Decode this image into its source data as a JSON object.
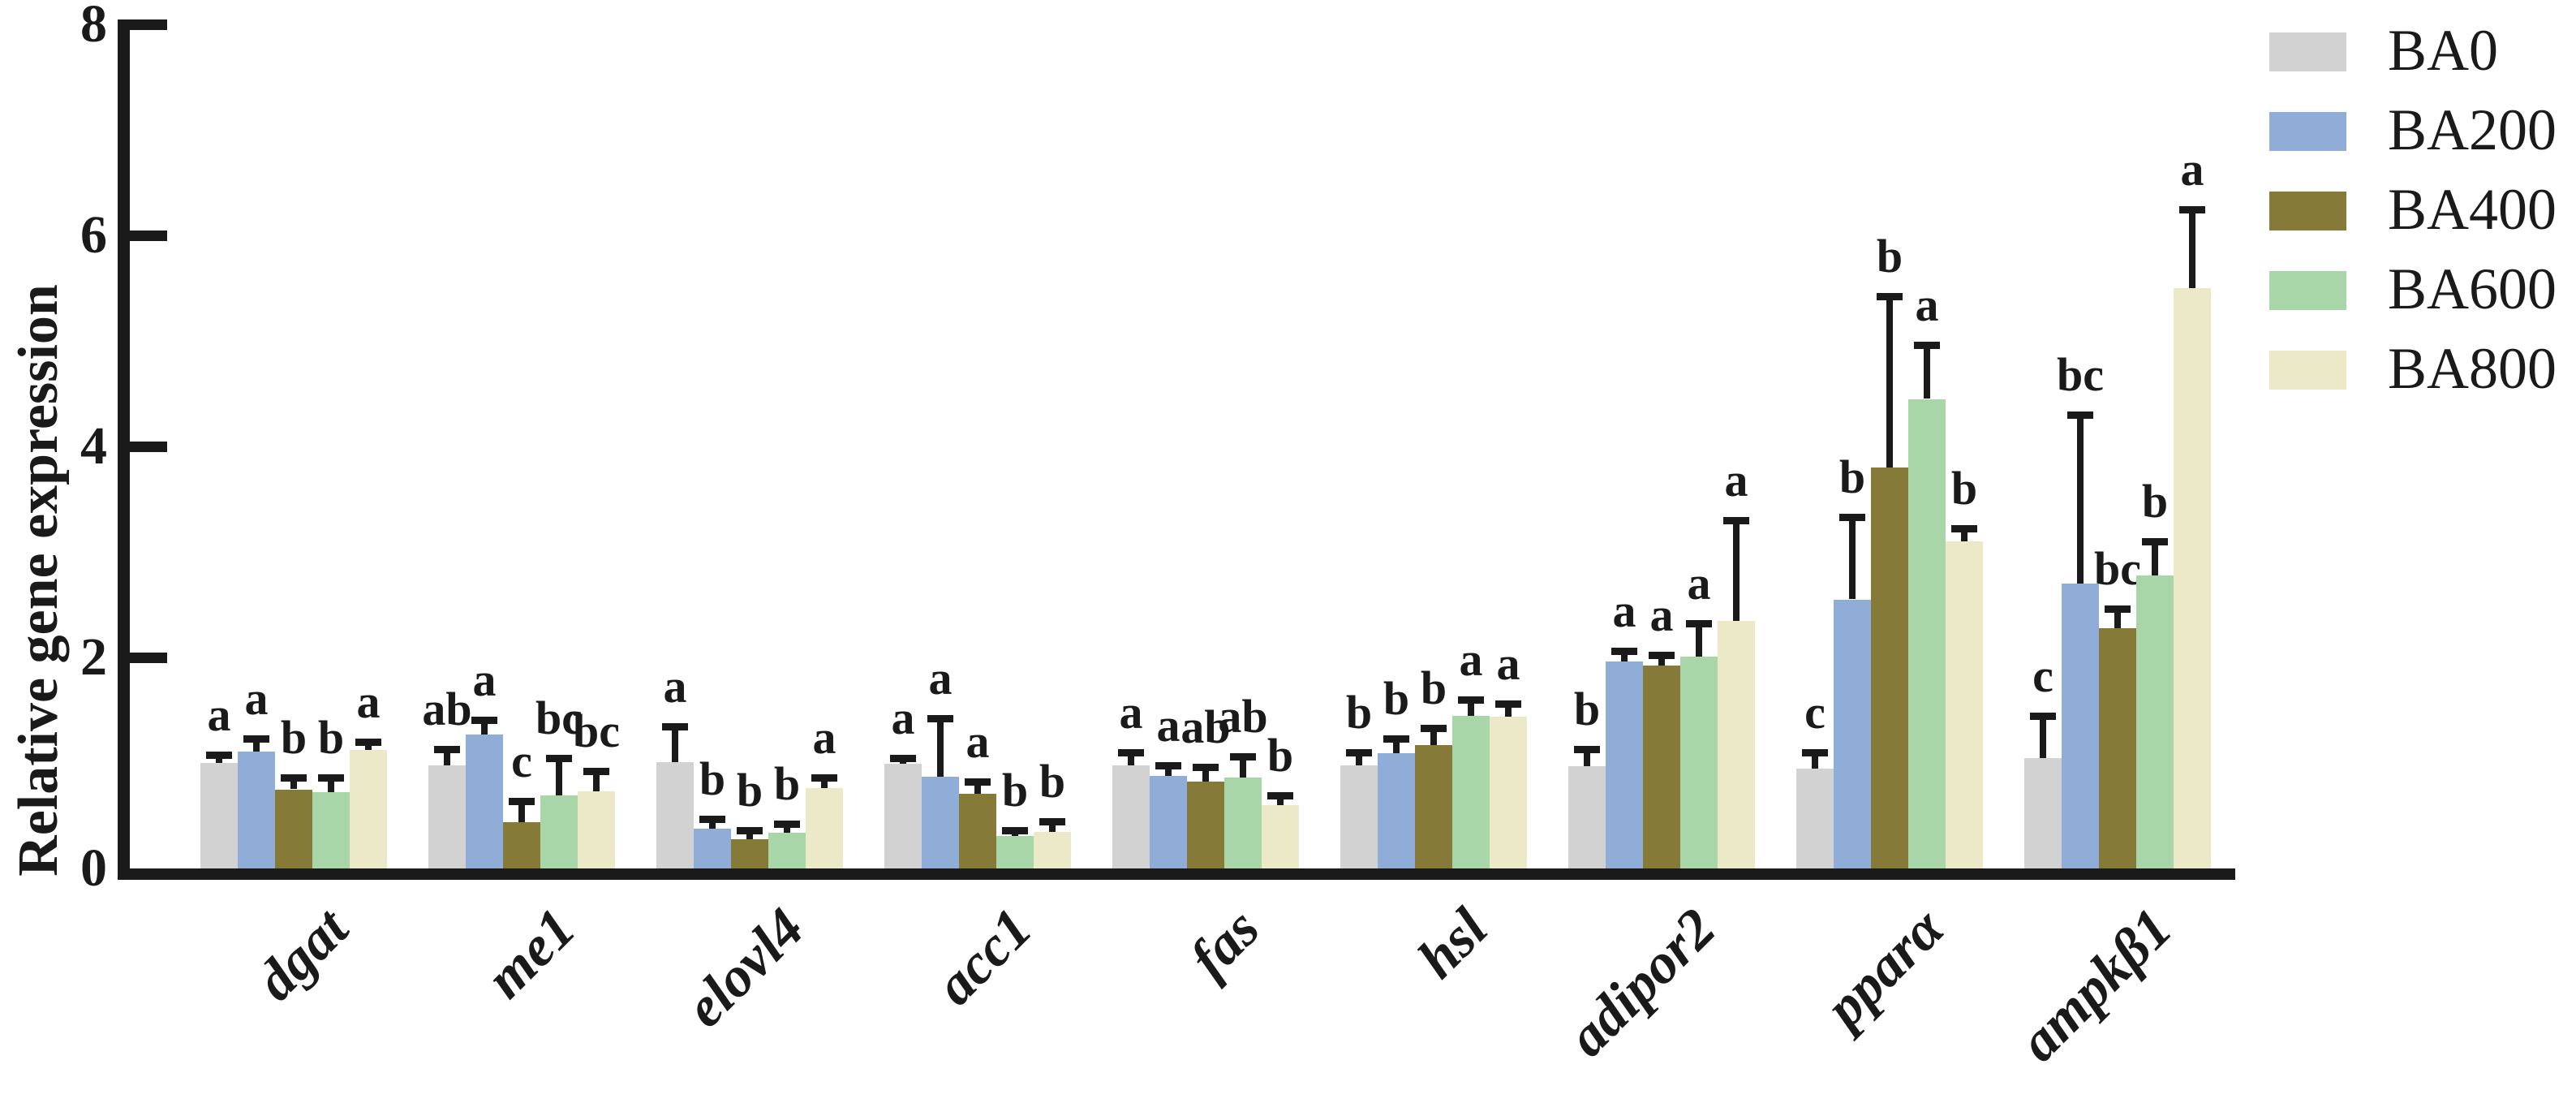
{
  "figure": {
    "background": "#ffffff",
    "axis_color": "#1a1a1a"
  },
  "chart_data": {
    "type": "bar",
    "title": "",
    "ylabel": "Relative gene expression",
    "xlabel": "",
    "ylim": [
      0,
      8
    ],
    "yticks": [
      0,
      2,
      4,
      6,
      8
    ],
    "grid": false,
    "error_bars": true,
    "legend_position": "top-right",
    "categories": [
      "dgat",
      "me1",
      "elovl4",
      "acc1",
      "fas",
      "hsl",
      "adipor2",
      "pparα",
      "ampkβ1"
    ],
    "series": [
      {
        "name": "BA0",
        "color": "#d2d2d2",
        "values": [
          1.0,
          0.98,
          1.01,
          0.99,
          0.98,
          0.98,
          0.97,
          0.95,
          1.05
        ],
        "error_tops": [
          1.08,
          1.13,
          1.35,
          1.05,
          1.1,
          1.1,
          1.13,
          1.1,
          1.45
        ],
        "sig_letters": [
          "a",
          "ab",
          "a",
          "a",
          "a",
          "b",
          "b",
          "c",
          "c"
        ]
      },
      {
        "name": "BA200",
        "color": "#8fadd6",
        "values": [
          1.11,
          1.27,
          0.38,
          0.87,
          0.88,
          1.09,
          1.96,
          2.55,
          2.7
        ],
        "error_tops": [
          1.23,
          1.41,
          0.47,
          1.42,
          0.98,
          1.23,
          2.06,
          3.33,
          4.3
        ],
        "sig_letters": [
          "a",
          "a",
          "b",
          "a",
          "a",
          "b",
          "a",
          "b",
          "bc"
        ]
      },
      {
        "name": "BA400",
        "color": "#857a38",
        "values": [
          0.75,
          0.44,
          0.28,
          0.71,
          0.82,
          1.17,
          1.92,
          3.8,
          2.28
        ],
        "error_tops": [
          0.86,
          0.64,
          0.36,
          0.82,
          0.96,
          1.33,
          2.02,
          5.42,
          2.46
        ],
        "sig_letters": [
          "b",
          "c",
          "b",
          "a",
          "ab",
          "b",
          "a",
          "b",
          "bc"
        ]
      },
      {
        "name": "BA600",
        "color": "#a8d6a8",
        "values": [
          0.72,
          0.69,
          0.34,
          0.31,
          0.86,
          1.45,
          2.01,
          4.45,
          2.78
        ],
        "error_tops": [
          0.86,
          1.05,
          0.42,
          0.36,
          1.06,
          1.6,
          2.32,
          4.96,
          3.1
        ],
        "sig_letters": [
          "b",
          "bc",
          "b",
          "b",
          "ab",
          "a",
          "a",
          "a",
          "b"
        ]
      },
      {
        "name": "BA800",
        "color": "#ece9c8",
        "values": [
          1.12,
          0.73,
          0.76,
          0.35,
          0.6,
          1.44,
          2.35,
          3.1,
          5.5
        ],
        "error_tops": [
          1.2,
          0.92,
          0.86,
          0.45,
          0.69,
          1.56,
          3.3,
          3.22,
          6.25
        ],
        "sig_letters": [
          "a",
          "bc",
          "a",
          "b",
          "b",
          "a",
          "a",
          "b",
          "a"
        ]
      }
    ]
  }
}
